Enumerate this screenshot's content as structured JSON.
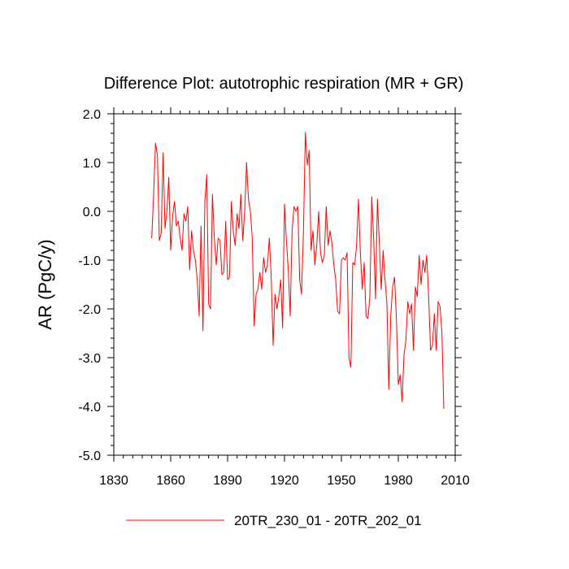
{
  "chart_data": {
    "type": "line",
    "title": "Difference Plot: autotrophic respiration (MR + GR)",
    "xlabel": "",
    "ylabel": "AR  (PgC/y)",
    "xlim": [
      1830,
      2010
    ],
    "ylim": [
      -5.0,
      2.0
    ],
    "xticks": [
      1830,
      1860,
      1890,
      1920,
      1950,
      1980,
      2010
    ],
    "xtick_labels": [
      "1830",
      "1860",
      "1890",
      "1920",
      "1950",
      "1980",
      "2010"
    ],
    "yticks": [
      2.0,
      1.0,
      0.0,
      -1.0,
      -2.0,
      -3.0,
      -4.0,
      -5.0
    ],
    "ytick_labels": [
      "2.0",
      "1.0",
      "0.0",
      "-1.0",
      "-2.0",
      "-3.0",
      "-4.0",
      "-5.0"
    ],
    "grid": false,
    "legend_position": "bottom",
    "series": [
      {
        "name": "20TR_230_01 - 20TR_202_01",
        "color": "#ff0000",
        "x_start": 1850,
        "x_step": 1,
        "values": [
          -0.55,
          0.35,
          1.4,
          1.15,
          -0.6,
          -0.45,
          1.2,
          -0.35,
          0.0,
          0.7,
          -0.8,
          -0.1,
          0.2,
          -0.3,
          -0.2,
          -0.55,
          -0.8,
          -0.05,
          -0.2,
          0.1,
          -1.2,
          -0.4,
          -0.8,
          -1.0,
          -1.4,
          -2.15,
          -0.3,
          -2.45,
          0.2,
          0.75,
          -1.9,
          -2.0,
          0.35,
          -0.55,
          -1.1,
          -0.55,
          -0.6,
          -1.3,
          -1.25,
          -0.2,
          -1.4,
          -1.35,
          0.2,
          -0.4,
          -0.7,
          -0.05,
          -0.35,
          0.35,
          -0.6,
          0.0,
          1.0,
          0.25,
          0.0,
          -0.55,
          -2.35,
          -1.7,
          -1.6,
          -1.25,
          -1.6,
          -0.95,
          -1.25,
          -1.1,
          -0.55,
          -1.35,
          -2.75,
          -1.7,
          -2.0,
          -1.75,
          -1.4,
          -2.4,
          0.15,
          -0.6,
          -1.2,
          -2.15,
          -0.4,
          0.1,
          0.0,
          0.1,
          -1.4,
          -1.7,
          -0.4,
          1.62,
          0.95,
          1.25,
          -0.8,
          -0.4,
          -1.1,
          -0.7,
          0.0,
          -0.85,
          -1.05,
          -0.9,
          0.1,
          -0.7,
          -0.4,
          -0.65,
          -1.1,
          -1.4,
          -2.05,
          -2.1,
          -1.0,
          -0.95,
          -1.0,
          -0.85,
          -3.0,
          -3.2,
          -1.05,
          -1.1,
          -0.7,
          0.25,
          -0.85,
          -1.6,
          -1.05,
          -2.15,
          -2.2,
          -1.75,
          0.3,
          -0.55,
          -1.8,
          0.25,
          -0.65,
          -1.6,
          -0.8,
          -1.4,
          -1.9,
          -3.65,
          -2.15,
          -1.55,
          -1.35,
          -2.2,
          -3.55,
          -3.35,
          -3.9,
          -2.95,
          -2.65,
          -1.85,
          -2.1,
          -1.9,
          -2.85,
          -1.55,
          -1.75,
          -0.9,
          -1.5,
          -1.0,
          -1.25,
          -0.9,
          -1.75,
          -2.85,
          -2.75,
          -2.1,
          -2.85,
          -1.85,
          -1.95,
          -2.5,
          -4.05
        ]
      }
    ]
  }
}
